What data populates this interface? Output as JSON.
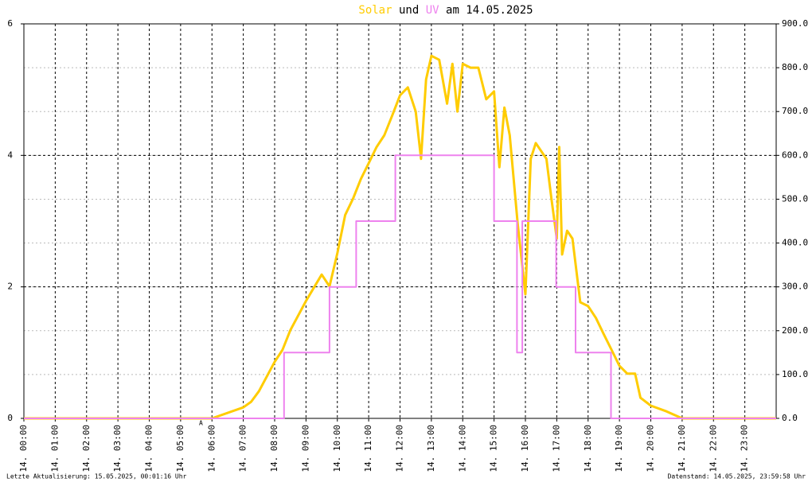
{
  "chart_data": {
    "type": "line",
    "title_join": "und",
    "title_suffix": "am 14.05.2025",
    "annotation": "A",
    "footer_left": "Letzte Aktualisierung: 15.05.2025, 00:01:16 Uhr",
    "footer_right": "Datenstand: 14.05.2025, 23:59:58 Uhr",
    "xlim": [
      0,
      24
    ],
    "xticks": [
      {
        "value": 0,
        "label": "14. 00:00"
      },
      {
        "value": 1,
        "label": "14. 01:00"
      },
      {
        "value": 2,
        "label": "14. 02:00"
      },
      {
        "value": 3,
        "label": "14. 03:00"
      },
      {
        "value": 4,
        "label": "14. 04:00"
      },
      {
        "value": 5,
        "label": "14. 05:00"
      },
      {
        "value": 6,
        "label": "14. 06:00"
      },
      {
        "value": 7,
        "label": "14. 07:00"
      },
      {
        "value": 8,
        "label": "14. 08:00"
      },
      {
        "value": 9,
        "label": "14. 09:00"
      },
      {
        "value": 10,
        "label": "14. 10:00"
      },
      {
        "value": 11,
        "label": "14. 11:00"
      },
      {
        "value": 12,
        "label": "14. 12:00"
      },
      {
        "value": 13,
        "label": "14. 13:00"
      },
      {
        "value": 14,
        "label": "14. 14:00"
      },
      {
        "value": 15,
        "label": "14. 15:00"
      },
      {
        "value": 16,
        "label": "14. 16:00"
      },
      {
        "value": 17,
        "label": "14. 17:00"
      },
      {
        "value": 18,
        "label": "14. 18:00"
      },
      {
        "value": 19,
        "label": "14. 19:00"
      },
      {
        "value": 20,
        "label": "14. 20:00"
      },
      {
        "value": 21,
        "label": "14. 21:00"
      },
      {
        "value": 22,
        "label": "14. 22:00"
      },
      {
        "value": 23,
        "label": "14. 23:00"
      }
    ],
    "ylim": [
      0,
      6
    ],
    "yticks": [
      0,
      2,
      4,
      6
    ],
    "y2lim": [
      0,
      900
    ],
    "y2ticks": [
      {
        "value": 0,
        "label": "0.0"
      },
      {
        "value": 100,
        "label": "100.0"
      },
      {
        "value": 200,
        "label": "200.0"
      },
      {
        "value": 300,
        "label": "300.0"
      },
      {
        "value": 400,
        "label": "400.0"
      },
      {
        "value": 500,
        "label": "500.0"
      },
      {
        "value": 600,
        "label": "600.0"
      },
      {
        "value": 700,
        "label": "700.0"
      },
      {
        "value": 800,
        "label": "800.0"
      },
      {
        "value": 900,
        "label": "900.0"
      }
    ],
    "grid": true,
    "series": [
      {
        "name": "Solar",
        "color": "#ffcc00",
        "axis": "y2",
        "x": [
          0,
          6,
          7,
          7.25,
          7.5,
          8,
          8.25,
          8.5,
          9,
          9.5,
          9.75,
          10,
          10.25,
          10.5,
          10.75,
          11,
          11.25,
          11.5,
          11.75,
          12,
          12.25,
          12.5,
          12.67,
          12.83,
          13,
          13.25,
          13.5,
          13.67,
          13.83,
          14,
          14.25,
          14.5,
          14.75,
          15,
          15.17,
          15.33,
          15.5,
          15.75,
          16,
          16.17,
          16.33,
          16.67,
          16.83,
          17,
          17.08,
          17.17,
          17.33,
          17.5,
          17.75,
          18,
          18.25,
          18.5,
          18.75,
          19,
          19.25,
          19.5,
          19.67,
          20,
          20.5,
          21,
          24
        ],
        "values": [
          0,
          0,
          25,
          38,
          62,
          129,
          156,
          201,
          268,
          328,
          301,
          377,
          464,
          501,
          546,
          582,
          619,
          646,
          691,
          737,
          755,
          700,
          592,
          773,
          827,
          818,
          718,
          809,
          700,
          809,
          800,
          800,
          728,
          746,
          573,
          709,
          646,
          446,
          283,
          592,
          628,
          592,
          501,
          410,
          619,
          374,
          428,
          410,
          265,
          256,
          229,
          192,
          156,
          120,
          102,
          102,
          47,
          29,
          16,
          0,
          0
        ]
      },
      {
        "name": "UV",
        "color": "#ee82ee",
        "axis": "y",
        "x": [
          0,
          8.3,
          8.3,
          9.75,
          9.75,
          10.6,
          10.6,
          11.85,
          11.85,
          15.0,
          15.0,
          15.73,
          15.73,
          15.9,
          15.9,
          16.98,
          16.98,
          17.6,
          17.6,
          18.73,
          18.73,
          24
        ],
        "values": [
          0,
          0,
          1,
          1,
          2,
          2,
          3,
          3,
          4,
          4,
          3,
          3,
          1,
          1,
          3,
          3,
          2,
          2,
          1,
          1,
          0,
          0
        ]
      }
    ]
  }
}
